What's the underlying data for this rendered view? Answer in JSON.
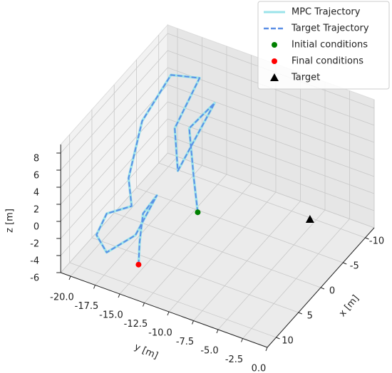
{
  "chart_data": {
    "type": "line3d",
    "xlabel": "x [m]",
    "ylabel": "y [m]",
    "zlabel": "z [m]",
    "xlim": [
      -12,
      12
    ],
    "ylim": [
      -21,
      0
    ],
    "zlim": [
      -6,
      9
    ],
    "xticks": [
      -10,
      -5,
      0,
      5,
      10
    ],
    "yticks": [
      {
        "value": -20,
        "label": "-20.0"
      },
      -17.5,
      {
        "value": -15,
        "label": "-15.0"
      },
      -12.5,
      {
        "value": -10,
        "label": "-10.0"
      },
      -7.5,
      {
        "value": -5,
        "label": "-5.0"
      },
      -2.5,
      {
        "value": 0,
        "label": "0.0"
      }
    ],
    "zticks": [
      -6,
      -4,
      -2,
      0,
      2,
      4,
      6,
      8
    ],
    "grid": true,
    "legend": "upper right",
    "series": [
      {
        "name": "MPC Trajectory",
        "color": "#9be3ea",
        "style": "solid",
        "x": [
          3.1,
          2.0,
          -1.4,
          -5.3,
          -4.0,
          0.5,
          -1.9,
          -5.7,
          -5.9,
          -1.2,
          5.6,
          5.8,
          8.3,
          9.5,
          10.3,
          8.7,
          2.8,
          5.0,
          8.2,
          9.1
        ],
        "y": [
          -11.1,
          -12.0,
          -14.0,
          -13.2,
          -13.4,
          -14.3,
          -15.7,
          -14.9,
          -17.9,
          -18.7,
          -17.0,
          -16.6,
          -18.0,
          -18.5,
          -17.1,
          -14.9,
          -15.4,
          -15.8,
          -14.7,
          -14.4
        ],
        "z": [
          0,
          3,
          6,
          7,
          6,
          2,
          5,
          9,
          8,
          5,
          3,
          0,
          0,
          -2,
          -3,
          -1,
          0,
          -1,
          -2,
          -4
        ]
      },
      {
        "name": "Target Trajectory",
        "color": "#5b8fe6",
        "style": "dashed",
        "x": [
          3.1,
          2.0,
          -1.4,
          -5.3,
          -4.0,
          0.5,
          -1.9,
          -5.7,
          -5.9,
          -1.2,
          5.6,
          5.8,
          8.3,
          9.5,
          10.3,
          8.7,
          2.8,
          5.0,
          8.2,
          9.1
        ],
        "y": [
          -11.1,
          -12.0,
          -14.0,
          -13.2,
          -13.4,
          -14.3,
          -15.7,
          -14.9,
          -17.9,
          -18.7,
          -17.0,
          -16.6,
          -18.0,
          -18.5,
          -17.1,
          -14.9,
          -15.4,
          -15.8,
          -14.7,
          -14.4
        ],
        "z": [
          0,
          3,
          6,
          7,
          6,
          2,
          5,
          9,
          8,
          5,
          3,
          0,
          0,
          -2,
          -3,
          -1,
          0,
          -1,
          -2,
          -4
        ]
      }
    ],
    "points": [
      {
        "name": "Initial conditions",
        "color": "green",
        "marker": "circle",
        "x": 3.1,
        "y": -11.1,
        "z": 0
      },
      {
        "name": "Final conditions",
        "color": "red",
        "marker": "circle",
        "x": 9.1,
        "y": -14.4,
        "z": -4
      },
      {
        "name": "Target",
        "color": "black",
        "marker": "triangle",
        "x": -2,
        "y": -2,
        "z": 0
      }
    ]
  }
}
